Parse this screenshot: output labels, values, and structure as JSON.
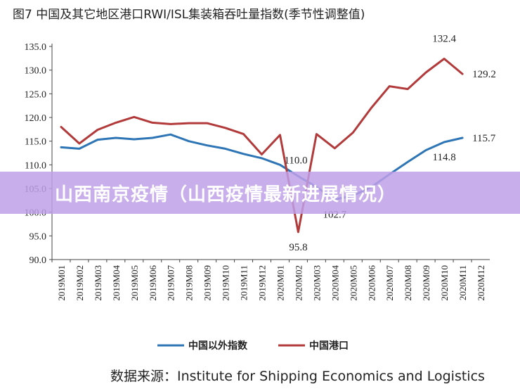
{
  "chart_data": {
    "type": "line",
    "title": "图7  中国及其它地区港口RWI/ISL集装箱吞吐量指数(季节性调整值)",
    "categories": [
      "2019M01",
      "2019M02",
      "2019M03",
      "2019M04",
      "2019M05",
      "2019M06",
      "2019M07",
      "2019M08",
      "2019M09",
      "2019M10",
      "2019M11",
      "2019M12",
      "2020M01",
      "2020M02",
      "2020M03",
      "2020M04",
      "2020M05",
      "2020M06",
      "2020M07",
      "2020M08",
      "2020M09",
      "2020M10",
      "2020M11",
      "2020M12"
    ],
    "ylim": [
      90,
      135
    ],
    "yticks": [
      "135.0",
      "130.0",
      "125.0",
      "120.0",
      "115.0",
      "110.0",
      "105.0",
      "100.0",
      "95.0",
      "90.0"
    ],
    "legend_position": "bottom",
    "series": [
      {
        "name": "中国以外指数",
        "color": "#2e75b6",
        "values": [
          113.7,
          113.4,
          115.3,
          115.7,
          115.4,
          115.7,
          116.4,
          115.0,
          114.1,
          113.4,
          112.3,
          111.4,
          110.0,
          107.6,
          105.3,
          102.7,
          103.5,
          105.3,
          108.0,
          110.6,
          113.1,
          114.8,
          115.7,
          null
        ],
        "labels": [
          {
            "index": 12,
            "text": "110.0",
            "pos": "ne"
          },
          {
            "index": 15,
            "text": "102.7",
            "pos": "s"
          },
          {
            "index": 21,
            "text": "114.8",
            "pos": "s"
          },
          {
            "index": 22,
            "text": "115.7",
            "pos": "e"
          }
        ]
      },
      {
        "name": "中国港口",
        "color": "#b23a3a",
        "values": [
          118.0,
          114.5,
          117.4,
          118.9,
          120.1,
          118.9,
          118.6,
          118.8,
          118.8,
          117.8,
          116.5,
          112.2,
          116.3,
          95.8,
          116.5,
          113.5,
          116.8,
          122.0,
          126.6,
          126.0,
          129.5,
          132.4,
          129.2,
          null
        ],
        "labels": [
          {
            "index": 13,
            "text": "95.8",
            "pos": "s"
          },
          {
            "index": 21,
            "text": "132.4",
            "pos": "n"
          },
          {
            "index": 22,
            "text": "129.2",
            "pos": "e"
          }
        ]
      }
    ]
  },
  "banner": {
    "text": "山西南京疫情（山西疫情最新进展情况）"
  },
  "source": {
    "text": "数据来源：Institute for Shipping Economics and Logistics"
  }
}
